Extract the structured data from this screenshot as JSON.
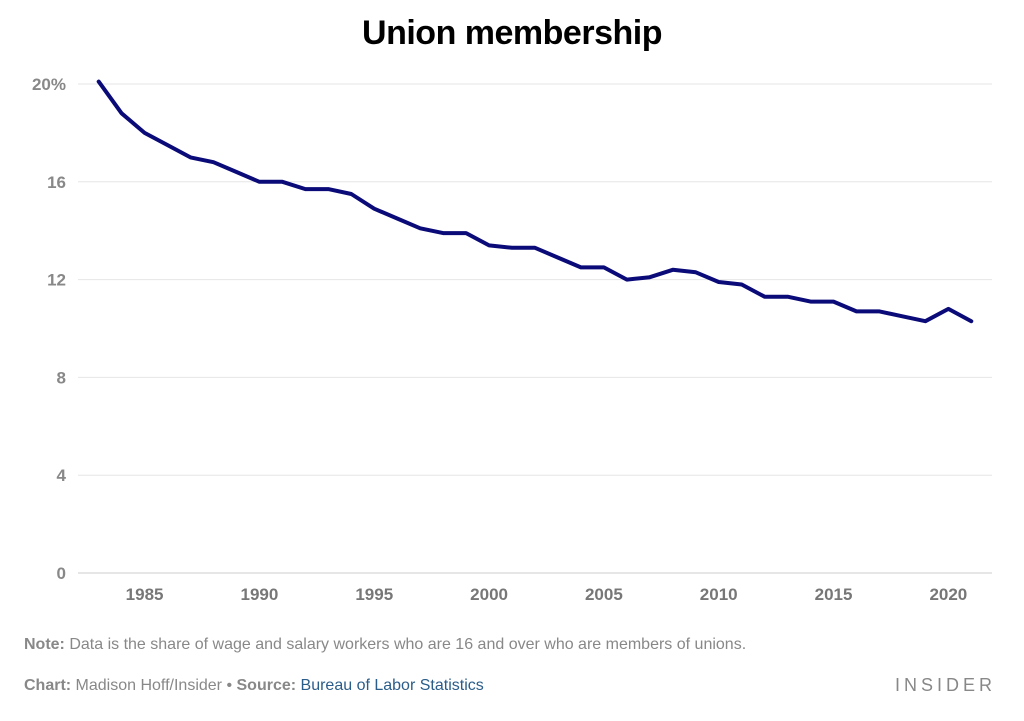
{
  "chart_data": {
    "type": "line",
    "title": "Union membership",
    "xlabel": "",
    "ylabel": "",
    "ylim": [
      0,
      20
    ],
    "xlim": [
      1982.1,
      2021.9
    ],
    "yticks": [
      {
        "value": 20,
        "label": "20%"
      },
      {
        "value": 16,
        "label": "16"
      },
      {
        "value": 12,
        "label": "12"
      },
      {
        "value": 8,
        "label": "8"
      },
      {
        "value": 4,
        "label": "4"
      },
      {
        "value": 0,
        "label": "0"
      }
    ],
    "xticks": [
      1985,
      1990,
      1995,
      2000,
      2005,
      2010,
      2015,
      2020
    ],
    "grid": true,
    "line_color": "#0a0a78",
    "x": [
      1983,
      1984,
      1985,
      1986,
      1987,
      1988,
      1989,
      1990,
      1991,
      1992,
      1993,
      1994,
      1995,
      1996,
      1997,
      1998,
      1999,
      2000,
      2001,
      2002,
      2003,
      2004,
      2005,
      2006,
      2007,
      2008,
      2009,
      2010,
      2011,
      2012,
      2013,
      2014,
      2015,
      2016,
      2017,
      2018,
      2019,
      2020,
      2021
    ],
    "series": [
      {
        "values": [
          20.1,
          18.8,
          18.0,
          17.5,
          17.0,
          16.8,
          16.4,
          16.0,
          16.0,
          15.7,
          15.7,
          15.5,
          14.9,
          14.5,
          14.1,
          13.9,
          13.9,
          13.4,
          13.3,
          13.3,
          12.9,
          12.5,
          12.5,
          12.0,
          12.1,
          12.4,
          12.3,
          11.9,
          11.8,
          11.3,
          11.3,
          11.1,
          11.1,
          10.7,
          10.7,
          10.5,
          10.3,
          10.8,
          10.3
        ]
      }
    ]
  },
  "note": {
    "label": "Note:",
    "text": " Data is the share of wage and salary workers who are 16 and over who are members of unions."
  },
  "credit": {
    "chart_label": "Chart:",
    "chart_text": " Madison Hoff/Insider ",
    "bullet": "•",
    "source_label": " Source:",
    "source_text": "Bureau of Labor Statistics"
  },
  "brand": "INSIDER"
}
